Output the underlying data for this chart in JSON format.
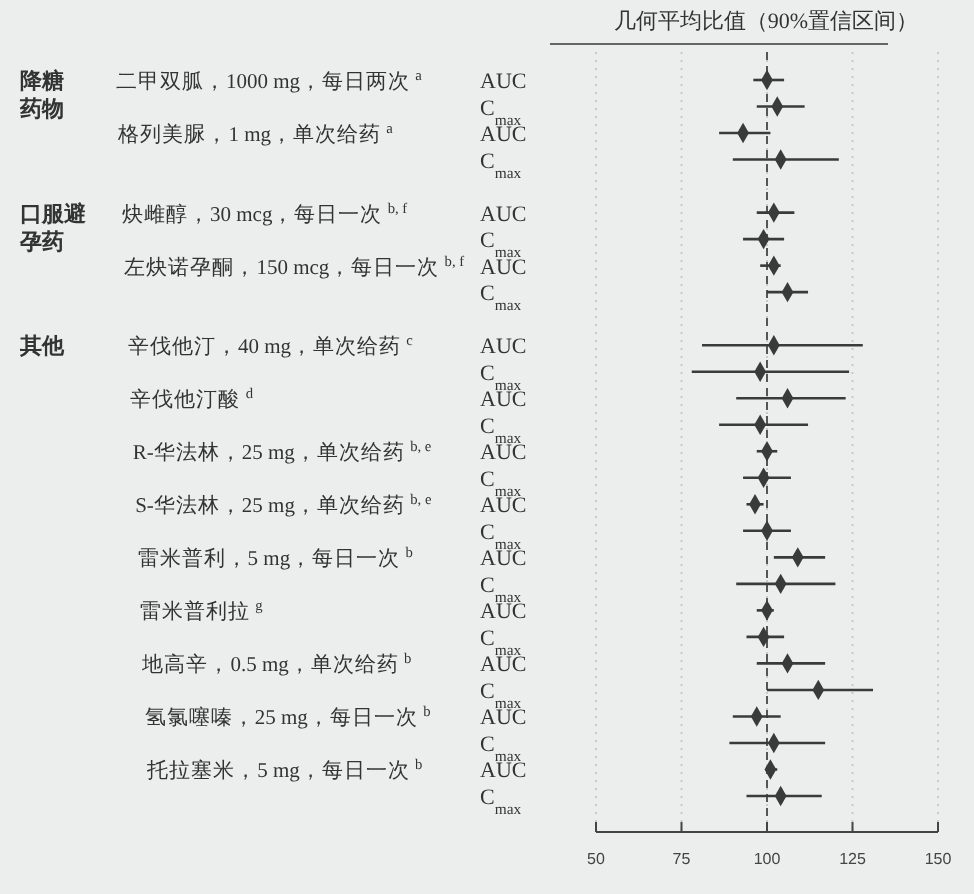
{
  "chart_data": {
    "type": "scatter",
    "orientation": "horizontal",
    "title": "几何平均比值（90%置信区间）",
    "categories": [
      "AUC",
      "C$_{max}$",
      "AUC",
      "C$_{max}$",
      null,
      "AUC",
      "C$_{max}$",
      "AUC",
      "C$_{max}$",
      null,
      "AUC",
      "C$_{max}$",
      "AUC",
      "C$_{max}$",
      "AUC",
      "C$_{max}$",
      "AUC",
      "C$_{max}$",
      "AUC",
      "C$_{max}$",
      "AUC",
      "C$_{max}$",
      "AUC",
      "C$_{max}$",
      "AUC",
      "C$_{max}$",
      "AUC",
      "C$_{max}$"
    ],
    "values": [
      100,
      103,
      93,
      104,
      null,
      102,
      99,
      102,
      106,
      null,
      102,
      98,
      106,
      98,
      100,
      99,
      96.5,
      100,
      109,
      104,
      100,
      99,
      106,
      115,
      97,
      102,
      101,
      104
    ],
    "errors": [
      [
        96,
        105
      ],
      [
        97,
        111
      ],
      [
        86,
        101
      ],
      [
        90,
        121
      ],
      null,
      [
        97,
        108
      ],
      [
        93,
        105
      ],
      [
        98,
        104
      ],
      [
        100,
        112
      ],
      null,
      [
        81,
        128
      ],
      [
        78,
        124
      ],
      [
        91,
        123
      ],
      [
        86,
        112
      ],
      [
        97,
        103
      ],
      [
        93,
        107
      ],
      [
        94,
        99
      ],
      [
        93,
        107
      ],
      [
        102,
        117
      ],
      [
        91,
        120
      ],
      [
        97,
        102
      ],
      [
        94,
        105
      ],
      [
        97,
        117
      ],
      [
        100,
        131
      ],
      [
        90,
        104
      ],
      [
        89,
        117
      ],
      [
        100,
        103
      ],
      [
        94,
        116
      ]
    ],
    "color": "#3a3a3a",
    "marker": "diamond",
    "xlim": [
      50,
      150
    ],
    "xticks": [
      50,
      75,
      100,
      125,
      150
    ],
    "grid": "x",
    "ref_lines": [
      {
        "axis": "x",
        "value": 100,
        "line_style": "dashed",
        "color": "#555555"
      }
    ],
    "annotations": [
      "降糖药物",
      "口服避孕药",
      "其他",
      "二甲双胍，1000 mg，每日两次 $^{a}$",
      "格列美脲，1 mg，单次给药 $^{a}$",
      "炔雌醇，30 mcg，每日一次 $^{b, f}$",
      "左炔诺孕酮，150 mcg，每日一次 $^{b, f}$",
      "辛伐他汀，40 mg，单次给药 $^{c}$",
      "辛伐他汀酸 $^{d}$",
      "R-华法林，25 mg，单次给药 $^{b, e}$",
      "S-华法林，25 mg，单次给药 $^{b, e}$",
      "雷米普利，5 mg，每日一次 $^{b}$",
      "雷米普利拉 $^{g}$",
      "地高辛，0.5 mg，单次给药 $^{b}$",
      "氢氯噻嗪，25 mg，每日一次 $^{b}$",
      "托拉塞米，5 mg，每日一次 $^{b}$"
    ]
  }
}
